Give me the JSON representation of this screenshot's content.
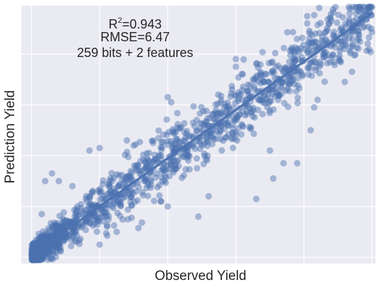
{
  "chart_data": {
    "type": "scatter",
    "xlabel": "Observed Yield",
    "ylabel": "Prediction Yield",
    "xlim": [
      -3,
      101
    ],
    "ylim": [
      -2.5,
      99
    ],
    "x_ticks": [
      0,
      20,
      40,
      60,
      80,
      100
    ],
    "y_ticks": [
      0,
      20,
      40,
      60,
      80,
      100
    ],
    "tick_labels_shown": false,
    "grid": true,
    "background_color": "#eaeaf2",
    "point_color": "#4c72b0",
    "line_color": "#4c72b0",
    "annotation": {
      "r2_prefix": "R",
      "r2_sup": "2",
      "r2_value": "=0.943",
      "rmse": "RMSE=6.47",
      "features": "259 bits + 2 features"
    },
    "regression_line": {
      "slope": 0.95,
      "intercept": 1.0
    },
    "approximate_point_count": 1500,
    "outliers": [
      {
        "x": 40,
        "y": 63
      },
      {
        "x": 41,
        "y": 61
      },
      {
        "x": 60,
        "y": 75
      },
      {
        "x": 60,
        "y": 78
      },
      {
        "x": 62,
        "y": 72
      },
      {
        "x": 66,
        "y": 23
      },
      {
        "x": 70,
        "y": 42
      },
      {
        "x": 71,
        "y": 31
      },
      {
        "x": 74,
        "y": 37
      },
      {
        "x": 78,
        "y": 37
      },
      {
        "x": 82,
        "y": 50
      },
      {
        "x": 83,
        "y": 59
      },
      {
        "x": 84,
        "y": 62
      },
      {
        "x": 20,
        "y": 5
      },
      {
        "x": 25,
        "y": 10
      },
      {
        "x": 17,
        "y": 42
      },
      {
        "x": 20,
        "y": 43
      },
      {
        "x": 28,
        "y": 46
      },
      {
        "x": 30,
        "y": 44
      },
      {
        "x": 8,
        "y": 30
      },
      {
        "x": 4,
        "y": 30
      },
      {
        "x": 6,
        "y": 33
      },
      {
        "x": 12,
        "y": 28
      },
      {
        "x": 5,
        "y": 8
      },
      {
        "x": 3,
        "y": 17
      },
      {
        "x": 38,
        "y": 22
      },
      {
        "x": 40,
        "y": 20
      },
      {
        "x": 49,
        "y": 16
      },
      {
        "x": 52,
        "y": 24
      },
      {
        "x": 88,
        "y": 93
      },
      {
        "x": 99,
        "y": 98
      },
      {
        "x": 96,
        "y": 97
      },
      {
        "x": 92,
        "y": 69
      }
    ]
  }
}
